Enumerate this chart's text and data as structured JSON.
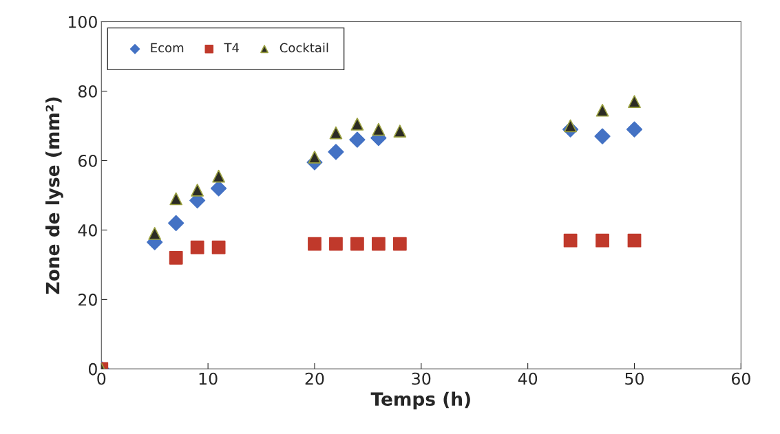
{
  "chart_data": {
    "type": "scatter",
    "xlabel": "Temps (h)",
    "ylabel": "Zone de lyse (mm²)",
    "xlim": [
      0,
      60
    ],
    "xticks": [
      0,
      10,
      20,
      30,
      40,
      50,
      60
    ],
    "ylim": [
      0,
      100
    ],
    "yticks": [
      0,
      20,
      40,
      60,
      80,
      100
    ],
    "grid": false,
    "legend": "top left",
    "series": [
      {
        "name": "Ecom",
        "color": "#4472c4",
        "marker": "diamond",
        "x": [
          0,
          5,
          7,
          9,
          11,
          20,
          22,
          24,
          26,
          28,
          44,
          47,
          50
        ],
        "values": [
          0,
          36.5,
          42,
          48.5,
          52,
          59.5,
          62.5,
          66,
          66.5,
          null,
          69,
          67,
          69
        ]
      },
      {
        "name": "T4",
        "color": "#c0392b",
        "marker": "square",
        "x": [
          0,
          7,
          9,
          11,
          20,
          22,
          24,
          26,
          28,
          44,
          47,
          50
        ],
        "values": [
          0,
          32,
          35,
          35,
          36,
          36,
          36,
          36,
          36,
          37,
          37,
          37
        ]
      },
      {
        "name": "Cocktail",
        "color": "#2b2b24",
        "marker": "triangle",
        "x": [
          0,
          5,
          7,
          9,
          11,
          20,
          22,
          24,
          26,
          28,
          44,
          47,
          50
        ],
        "values": [
          0,
          39,
          49,
          51.5,
          55.5,
          61,
          68,
          70.5,
          69,
          68.5,
          70,
          74.5,
          77
        ]
      }
    ]
  }
}
